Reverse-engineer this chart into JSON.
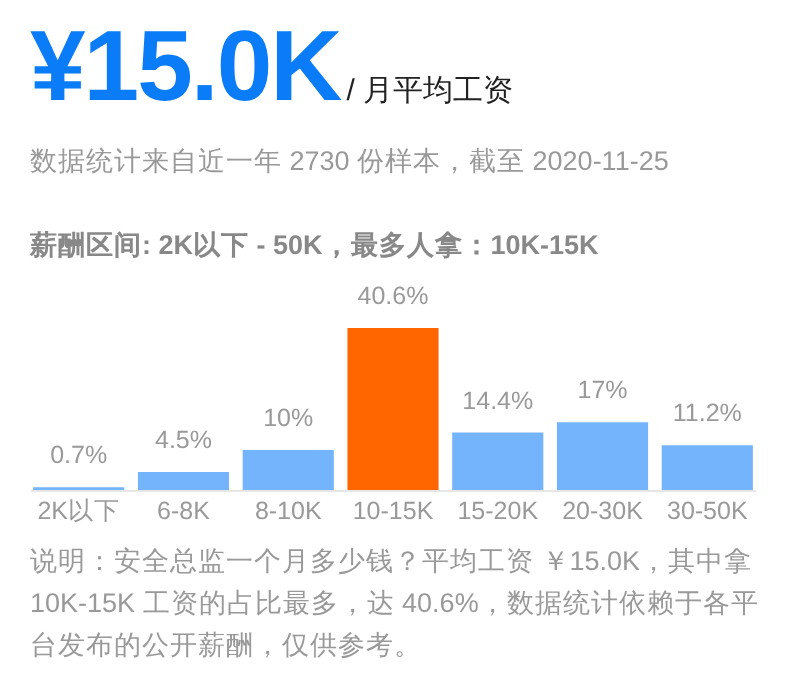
{
  "chart_data": {
    "type": "bar",
    "title": "¥15.0K",
    "subtitle": "/ 月平均工资",
    "annotations": [
      "数据统计来自近一年 2730 份样本，截至 2020-11-25",
      "薪酬区间: 2K以下 - 50K，最多人拿：10K-15K",
      "说明：安全总监一个月多少钱？平均工资 ￥15.0K，其中拿 10K-15K 工资的占比最多，达 40.6%，数据统计依赖于各平台发布的公开薪酬，仅供参考。"
    ],
    "categories": [
      "2K以下",
      "6-8K",
      "8-10K",
      "10-15K",
      "15-20K",
      "20-30K",
      "30-50K"
    ],
    "values": [
      0.7,
      4.5,
      10,
      40.6,
      14.4,
      17,
      11.2
    ],
    "value_labels": [
      "0.7%",
      "4.5%",
      "10%",
      "40.6%",
      "14.4%",
      "17%",
      "11.2%"
    ],
    "colors": [
      "#74b4fc",
      "#74b4fc",
      "#74b4fc",
      "#ff6600",
      "#74b4fc",
      "#74b4fc",
      "#74b4fc"
    ]
  }
}
